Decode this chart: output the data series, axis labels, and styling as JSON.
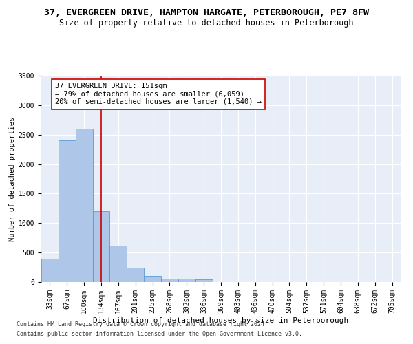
{
  "title": "37, EVERGREEN DRIVE, HAMPTON HARGATE, PETERBOROUGH, PE7 8FW",
  "subtitle": "Size of property relative to detached houses in Peterborough",
  "xlabel": "Distribution of detached houses by size in Peterborough",
  "ylabel": "Number of detached properties",
  "categories": [
    "33sqm",
    "67sqm",
    "100sqm",
    "134sqm",
    "167sqm",
    "201sqm",
    "235sqm",
    "268sqm",
    "302sqm",
    "336sqm",
    "369sqm",
    "403sqm",
    "436sqm",
    "470sqm",
    "504sqm",
    "537sqm",
    "571sqm",
    "604sqm",
    "638sqm",
    "672sqm",
    "705sqm"
  ],
  "values": [
    400,
    2400,
    2600,
    1200,
    620,
    240,
    100,
    60,
    55,
    50,
    0,
    0,
    0,
    0,
    0,
    0,
    0,
    0,
    0,
    0,
    0
  ],
  "bar_color": "#aec6e8",
  "bar_edge_color": "#5b9bd5",
  "background_color": "#e8eef8",
  "grid_color": "#ffffff",
  "vline_color": "#cc0000",
  "vline_pos": 3.015,
  "annotation_line1": "37 EVERGREEN DRIVE: 151sqm",
  "annotation_line2": "← 79% of detached houses are smaller (6,059)",
  "annotation_line3": "20% of semi-detached houses are larger (1,540) →",
  "annotation_box_color": "#ffffff",
  "annotation_box_edge": "#cc0000",
  "ylim": [
    0,
    3500
  ],
  "yticks": [
    0,
    500,
    1000,
    1500,
    2000,
    2500,
    3000,
    3500
  ],
  "footer1": "Contains HM Land Registry data © Crown copyright and database right 2024.",
  "footer2": "Contains public sector information licensed under the Open Government Licence v3.0.",
  "title_fontsize": 9.5,
  "subtitle_fontsize": 8.5,
  "xlabel_fontsize": 8,
  "ylabel_fontsize": 7.5,
  "tick_fontsize": 7,
  "annot_fontsize": 7.5,
  "footer_fontsize": 6
}
